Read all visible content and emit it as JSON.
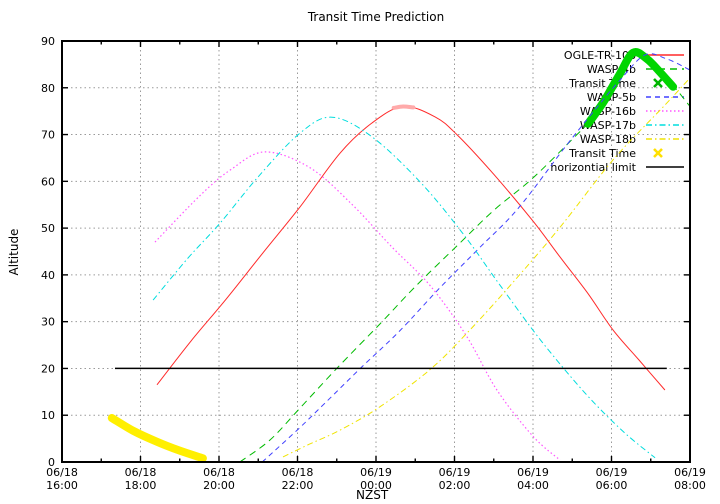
{
  "title": "Transit Time Prediction",
  "axes": {
    "x_label": "NZST",
    "y_label": "Altitude",
    "y_ticks": [
      0,
      10,
      20,
      30,
      40,
      50,
      60,
      70,
      80,
      90
    ],
    "y_range": [
      0,
      90
    ],
    "x_range_hours": [
      0,
      16
    ],
    "x_ticks": [
      {
        "date": "06/18",
        "time": "16:00"
      },
      {
        "date": "06/18",
        "time": "18:00"
      },
      {
        "date": "06/18",
        "time": "20:00"
      },
      {
        "date": "06/18",
        "time": "22:00"
      },
      {
        "date": "06/19",
        "time": "00:00"
      },
      {
        "date": "06/19",
        "time": "02:00"
      },
      {
        "date": "06/19",
        "time": "04:00"
      },
      {
        "date": "06/19",
        "time": "06:00"
      },
      {
        "date": "06/19",
        "time": "08:00"
      }
    ]
  },
  "chart_data": {
    "type": "line",
    "title": "Transit Time Prediction",
    "xlabel": "NZST",
    "ylabel": "Altitude",
    "x_unit": "hours after 06/18 16:00 NZST",
    "ylim": [
      0,
      90
    ],
    "grid": "dotted both axes",
    "legend_position": "top-right inside",
    "series": [
      {
        "key": "ogle-tr-10b",
        "name": "OGLE-TR-10b",
        "color": "#ff2a2a",
        "dash": "solid",
        "width": 1,
        "points": [
          [
            2.42,
            16.5
          ],
          [
            3.3,
            26
          ],
          [
            4.2,
            35
          ],
          [
            5.1,
            44.5
          ],
          [
            6.06,
            54.5
          ],
          [
            7.08,
            66
          ],
          [
            7.9,
            72.5
          ],
          [
            8.69,
            76
          ],
          [
            9.5,
            73.8
          ],
          [
            10.06,
            70
          ],
          [
            11,
            61.5
          ],
          [
            12,
            51.5
          ],
          [
            12.69,
            43.8
          ],
          [
            13.4,
            36
          ],
          [
            14.04,
            28.2
          ],
          [
            14.7,
            21.8
          ],
          [
            15.36,
            15.4
          ]
        ]
      },
      {
        "key": "transit-time-ogle",
        "name": "Transit Time",
        "color": "#ffaaaa",
        "dash": "solid",
        "width": 4,
        "points": [
          [
            8.45,
            75.7
          ],
          [
            8.69,
            76
          ],
          [
            8.95,
            75.8
          ]
        ]
      },
      {
        "key": "wasp-4b",
        "name": "WASP-4b",
        "color": "#00bb00",
        "dash": "dashed",
        "width": 1,
        "points": [
          [
            4.53,
            0
          ],
          [
            5.3,
            4.7
          ],
          [
            6.06,
            11.5
          ],
          [
            7,
            20
          ],
          [
            8.1,
            29.5
          ],
          [
            9,
            37.5
          ],
          [
            10.1,
            46.5
          ],
          [
            11,
            53.8
          ],
          [
            11.97,
            60.5
          ],
          [
            13,
            69
          ],
          [
            13.45,
            73
          ],
          [
            14,
            80
          ],
          [
            14.55,
            87.5
          ],
          [
            15,
            86
          ],
          [
            15.57,
            80.5
          ],
          [
            16,
            76
          ]
        ]
      },
      {
        "key": "transit-time-wasp4b",
        "name": "Transit Time",
        "color": "#00d500",
        "dash": "solid",
        "width": 8,
        "points": [
          [
            13.4,
            72.3
          ],
          [
            13.8,
            77
          ],
          [
            14.2,
            82.8
          ],
          [
            14.55,
            87.5
          ],
          [
            14.9,
            86.2
          ],
          [
            15.25,
            83.2
          ],
          [
            15.57,
            80.2
          ]
        ]
      },
      {
        "key": "wasp-5b",
        "name": "WASP-5b",
        "color": "#4040ff",
        "dash": "dashed-small",
        "width": 1,
        "points": [
          [
            5.1,
            0
          ],
          [
            5.99,
            6.8
          ],
          [
            6.7,
            12.6
          ],
          [
            7.6,
            20
          ],
          [
            8.6,
            28
          ],
          [
            9.6,
            37
          ],
          [
            10.6,
            45.5
          ],
          [
            11.6,
            54
          ],
          [
            12.76,
            66.7
          ],
          [
            13.5,
            74.5
          ],
          [
            14.2,
            81.5
          ],
          [
            14.85,
            87
          ],
          [
            15.4,
            86.2
          ],
          [
            16,
            83.8
          ]
        ]
      },
      {
        "key": "wasp-16b",
        "name": "WASP-16b",
        "color": "#ff55ff",
        "dash": "dotted",
        "width": 1.2,
        "points": [
          [
            2.37,
            47
          ],
          [
            3.52,
            57
          ],
          [
            4.3,
            62.5
          ],
          [
            5.17,
            66.3
          ],
          [
            6.32,
            62.9
          ],
          [
            7.41,
            54.9
          ],
          [
            8.4,
            46
          ],
          [
            9.37,
            37.8
          ],
          [
            10.3,
            27
          ],
          [
            11.08,
            15.4
          ],
          [
            12,
            5.5
          ],
          [
            12.69,
            0.4
          ]
        ]
      },
      {
        "key": "wasp-17b",
        "name": "WASP-17b",
        "color": "#00dddd",
        "dash": "dashdot",
        "width": 1,
        "points": [
          [
            2.32,
            34.6
          ],
          [
            3.2,
            43.5
          ],
          [
            4.03,
            51.1
          ],
          [
            5,
            61
          ],
          [
            6.06,
            70.3
          ],
          [
            6.88,
            73.7
          ],
          [
            7.9,
            69.5
          ],
          [
            9.12,
            59.9
          ],
          [
            10.2,
            49
          ],
          [
            11.16,
            37.8
          ],
          [
            12.2,
            26
          ],
          [
            13.32,
            14.8
          ],
          [
            14.3,
            6.5
          ],
          [
            15.11,
            0.9
          ]
        ]
      },
      {
        "key": "wasp-18b",
        "name": "WASP-18b",
        "color": "#f0e400",
        "dash": "dashdot",
        "width": 1,
        "points": [
          [
            5.63,
            1.1
          ],
          [
            6.3,
            3.8
          ],
          [
            7.08,
            6.8
          ],
          [
            8.1,
            11.8
          ],
          [
            9.37,
            19.7
          ],
          [
            10.39,
            28.2
          ],
          [
            11.5,
            38.5
          ],
          [
            12.69,
            50.2
          ],
          [
            14.04,
            64.6
          ],
          [
            15.36,
            76.3
          ],
          [
            16,
            82.1
          ]
        ]
      },
      {
        "key": "transit-time-wasp18b",
        "name": "Transit Time",
        "color": "#ffef00",
        "dash": "solid",
        "width": 8,
        "points": [
          [
            1.27,
            9.4
          ],
          [
            1.81,
            6.7
          ],
          [
            2.4,
            4.4
          ],
          [
            3.01,
            2.4
          ],
          [
            3.59,
            0.8
          ]
        ]
      },
      {
        "key": "horizontial-limit",
        "name": "horizontial limit",
        "color": "#000000",
        "dash": "solid",
        "width": 1.5,
        "points": [
          [
            1.35,
            20
          ],
          [
            15.41,
            20
          ]
        ]
      }
    ],
    "legend": [
      {
        "label": "OGLE-TR-10b",
        "swatch": "line",
        "color": "#ff2a2a",
        "dash": "solid"
      },
      {
        "label": "WASP-4b",
        "swatch": "line",
        "color": "#00bb00",
        "dash": "dashed"
      },
      {
        "label": "Transit Time",
        "swatch": "cross",
        "color": "#00b400",
        "dash": "solid"
      },
      {
        "label": "WASP-5b",
        "swatch": "line",
        "color": "#4040ff",
        "dash": "dashed-small"
      },
      {
        "label": "WASP-16b",
        "swatch": "line",
        "color": "#ff55ff",
        "dash": "dotted"
      },
      {
        "label": "WASP-17b",
        "swatch": "line",
        "color": "#00dddd",
        "dash": "dashdot"
      },
      {
        "label": "WASP-18b",
        "swatch": "line",
        "color": "#f0e400",
        "dash": "dashdot"
      },
      {
        "label": "Transit Time",
        "swatch": "cross",
        "color": "#ffe000",
        "dash": "solid"
      },
      {
        "label": "horizontial limit",
        "swatch": "line",
        "color": "#000000",
        "dash": "solid"
      }
    ],
    "colors": {
      "grid": "#9a9a9a",
      "border": "#000000",
      "background": "#ffffff"
    }
  }
}
